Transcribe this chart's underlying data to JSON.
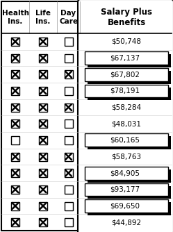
{
  "title_row": [
    "Health\nIns.",
    "Life\nIns.",
    "Day\nCare",
    "Salary Plus\nBenefits"
  ],
  "health_ins": [
    true,
    true,
    true,
    true,
    true,
    true,
    false,
    true,
    true,
    true,
    true,
    true
  ],
  "life_ins": [
    true,
    true,
    true,
    true,
    true,
    true,
    true,
    true,
    true,
    true,
    true,
    true
  ],
  "day_care": [
    false,
    false,
    true,
    false,
    true,
    false,
    false,
    true,
    true,
    false,
    false,
    false
  ],
  "salaries": [
    50748,
    67137,
    67802,
    78191,
    58284,
    48031,
    60165,
    58763,
    84905,
    93177,
    69650,
    44892
  ],
  "shadow_threshold": 60000,
  "bg_color": "#ffffff",
  "figsize": [
    2.49,
    3.34
  ],
  "dpi": 100
}
